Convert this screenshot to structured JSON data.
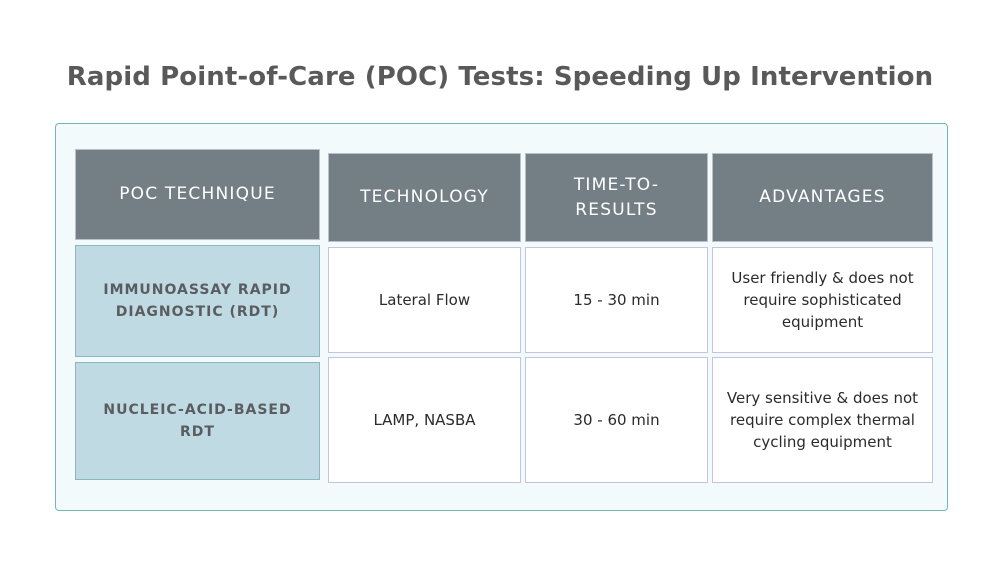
{
  "title": "Rapid Point-of-Care (POC) Tests: Speeding Up Intervention",
  "table": {
    "headers": {
      "technique": "POC TECHNIQUE",
      "technology": "TECHNOLOGY",
      "time_line1": "TIME-TO-",
      "time_line2": "RESULTS",
      "advantages": "ADVANTAGES"
    },
    "rows": [
      {
        "technique_line1": "IMMUNOASSAY RAPID",
        "technique_line2": "DIAGNOSTIC (RDT)",
        "technology": "Lateral Flow",
        "time": "15 - 30 min",
        "advantages_line1": "User friendly & does not",
        "advantages_line2": "require sophisticated",
        "advantages_line3": "equipment"
      },
      {
        "technique_line1": "NUCLEIC-ACID-BASED",
        "technique_line2": "RDT",
        "technology": "LAMP, NASBA",
        "time": "30 - 60 min",
        "advantages_line1": "Very sensitive & does not",
        "advantages_line2": "require complex thermal",
        "advantages_line3": "cycling equipment"
      }
    ]
  },
  "colors": {
    "header_bg": "#737f85",
    "row_label_bg": "#bfdae3",
    "panel_bg": "#f3fafc",
    "panel_border": "#6fb8b3",
    "title_text": "#59595a"
  }
}
